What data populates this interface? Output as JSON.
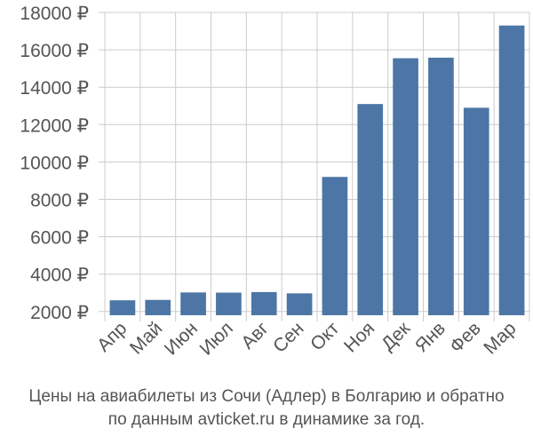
{
  "chart_data": {
    "type": "bar",
    "categories": [
      "Апр",
      "Май",
      "Июн",
      "Июл",
      "Авг",
      "Сен",
      "Окт",
      "Ноя",
      "Дек",
      "Янв",
      "Фев",
      "Мар"
    ],
    "values": [
      2600,
      2620,
      3020,
      3010,
      3040,
      2970,
      9200,
      13100,
      15550,
      15580,
      12900,
      17300
    ],
    "ylim": [
      1800,
      18000
    ],
    "yticks": [
      2000,
      4000,
      6000,
      8000,
      10000,
      12000,
      14000,
      16000,
      18000
    ],
    "ytick_labels": [
      "2000 ₽",
      "4000 ₽",
      "6000 ₽",
      "8000 ₽",
      "10000 ₽",
      "12000 ₽",
      "14000 ₽",
      "16000 ₽",
      "18000 ₽"
    ],
    "grid": true,
    "bar_color": "#4d76a6",
    "grid_color": "#cccccc",
    "text_color": "#555555"
  },
  "caption": {
    "line1": "Цены на авиабилеты из Сочи (Адлер) в Болгарию и обратно",
    "line2": "по данным avticket.ru в динамике за год."
  }
}
